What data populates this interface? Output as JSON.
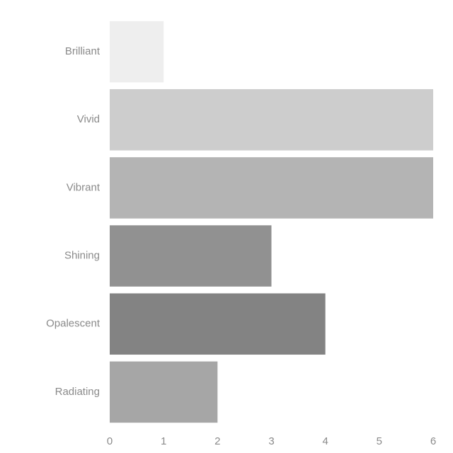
{
  "chart_data": {
    "type": "bar",
    "orientation": "horizontal",
    "categories": [
      "Brilliant",
      "Vivid",
      "Vibrant",
      "Shining",
      "Opalescent",
      "Radiating"
    ],
    "values": [
      1,
      6,
      6,
      3,
      4,
      2
    ],
    "colors": [
      "#eeeeee",
      "#cdcdcd",
      "#b4b4b4",
      "#919191",
      "#838383",
      "#a6a6a6"
    ],
    "xticks": [
      "0",
      "1",
      "2",
      "3",
      "4",
      "5",
      "6"
    ],
    "xlim": [
      0,
      6
    ],
    "title": "",
    "xlabel": "",
    "ylabel": "",
    "grid": false,
    "legend": "none"
  }
}
